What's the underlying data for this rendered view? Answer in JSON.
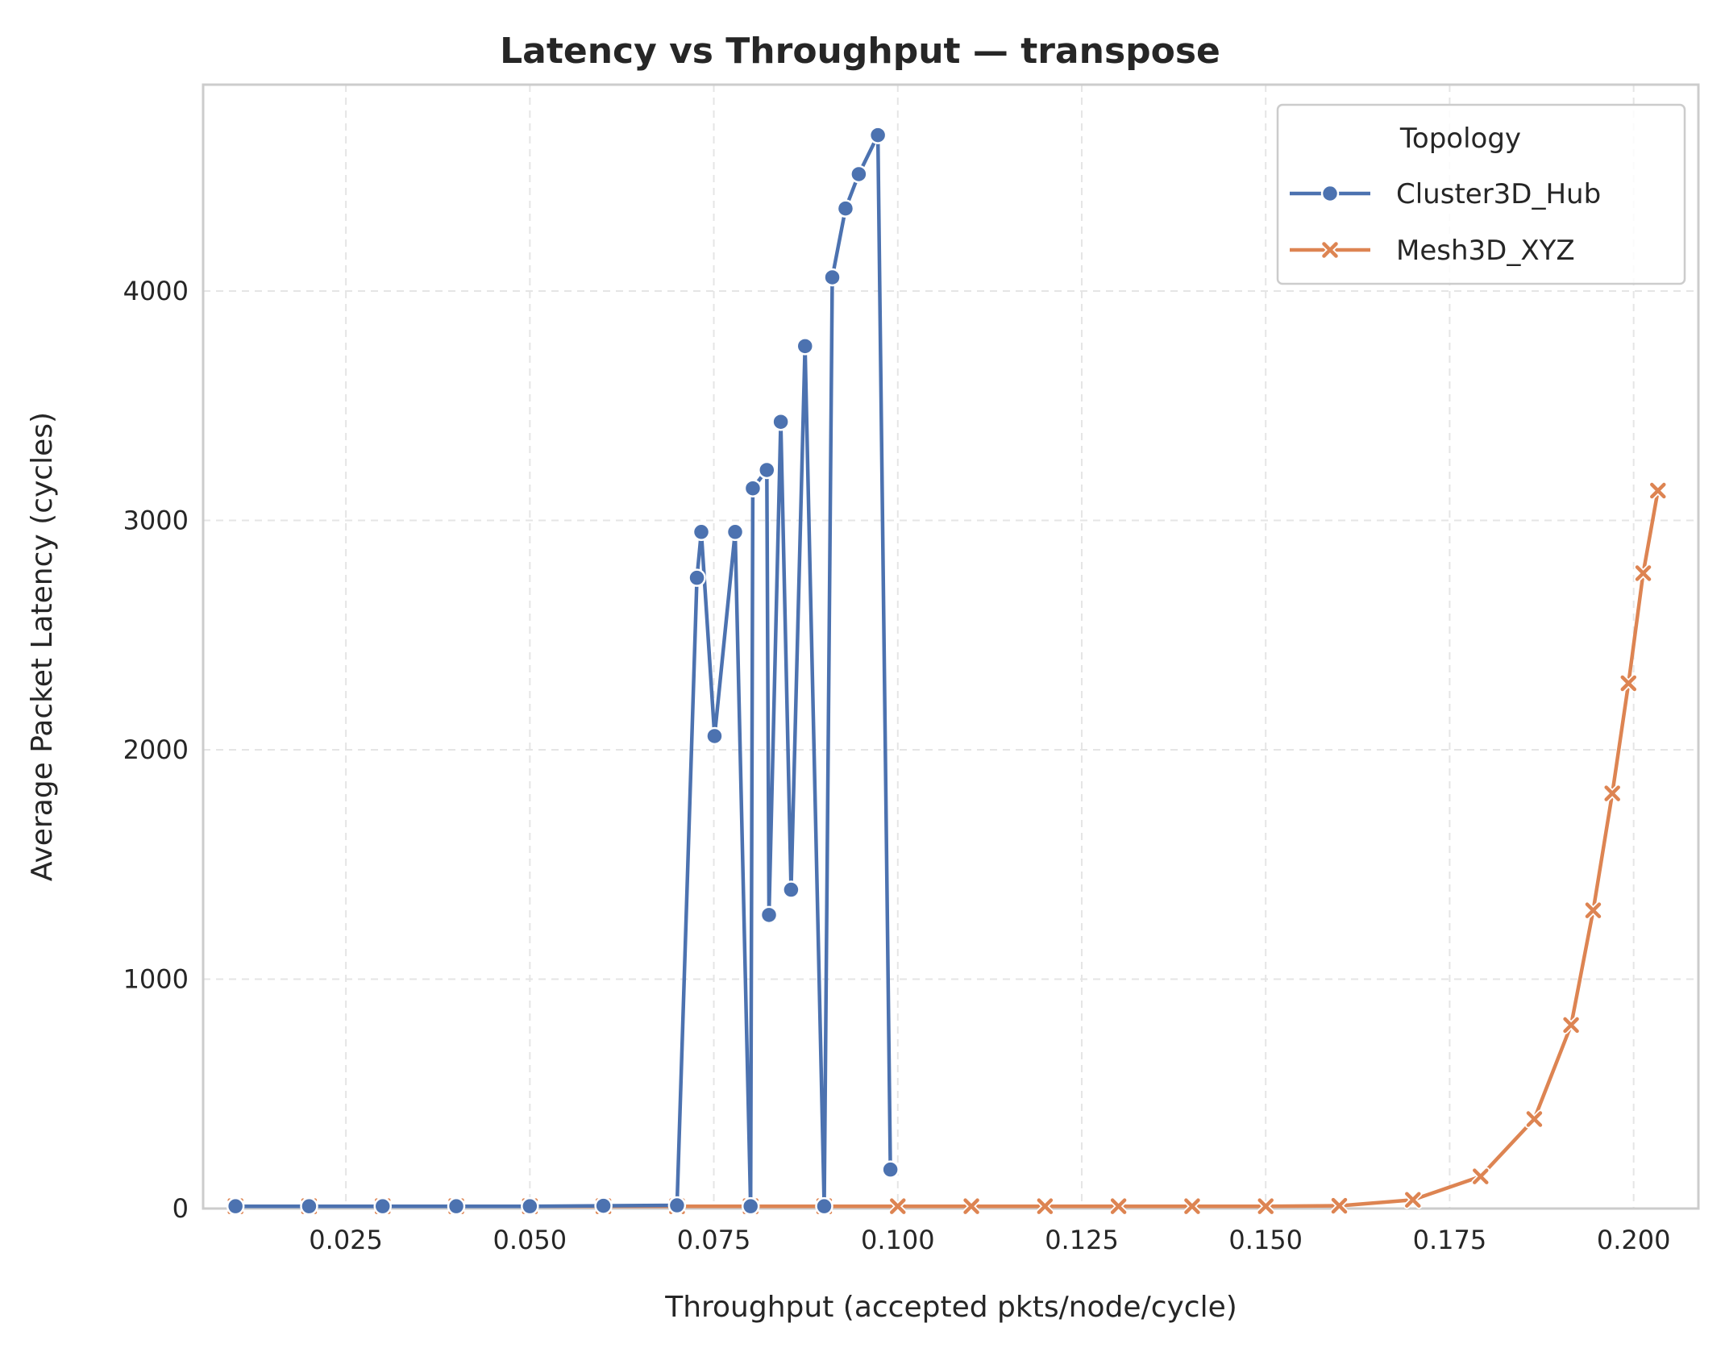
{
  "chart_data": {
    "type": "line",
    "title": "Latency vs Throughput — transpose",
    "xlabel": "Throughput (accepted pkts/node/cycle)",
    "ylabel": "Average Packet Latency (cycles)",
    "xlim": [
      0.0056,
      0.2088
    ],
    "ylim": [
      0,
      4900
    ],
    "xticks": [
      0.025,
      0.05,
      0.075,
      0.1,
      0.125,
      0.15,
      0.175,
      0.2
    ],
    "xtick_labels": [
      "0.025",
      "0.050",
      "0.075",
      "0.100",
      "0.125",
      "0.150",
      "0.175",
      "0.200"
    ],
    "yticks": [
      0,
      1000,
      2000,
      3000,
      4000
    ],
    "ytick_labels": [
      "0",
      "1000",
      "2000",
      "3000",
      "4000"
    ],
    "grid": true,
    "legend": {
      "title": "Topology",
      "position": "top-right"
    },
    "series": [
      {
        "name": "Cluster3D_Hub",
        "color": "#4c72b0",
        "marker": "circle",
        "points": [
          [
            0.01,
            10
          ],
          [
            0.02,
            10
          ],
          [
            0.03,
            10
          ],
          [
            0.04,
            10
          ],
          [
            0.05,
            10
          ],
          [
            0.06,
            12
          ],
          [
            0.07,
            14
          ],
          [
            0.0727,
            2750
          ],
          [
            0.0733,
            2950
          ],
          [
            0.0751,
            2060
          ],
          [
            0.0779,
            2950
          ],
          [
            0.08,
            10
          ],
          [
            0.0803,
            3140
          ],
          [
            0.0822,
            3220
          ],
          [
            0.0825,
            1280
          ],
          [
            0.0841,
            3430
          ],
          [
            0.0855,
            1390
          ],
          [
            0.0874,
            3760
          ],
          [
            0.09,
            10
          ],
          [
            0.0911,
            4060
          ],
          [
            0.0929,
            4360
          ],
          [
            0.0947,
            4510
          ],
          [
            0.0973,
            4680
          ],
          [
            0.099,
            170
          ]
        ]
      },
      {
        "name": "Mesh3D_XYZ",
        "color": "#dd8452",
        "marker": "x",
        "points": [
          [
            0.01,
            10
          ],
          [
            0.02,
            10
          ],
          [
            0.03,
            10
          ],
          [
            0.04,
            10
          ],
          [
            0.05,
            10
          ],
          [
            0.06,
            10
          ],
          [
            0.07,
            10
          ],
          [
            0.08,
            10
          ],
          [
            0.09,
            10
          ],
          [
            0.1,
            10
          ],
          [
            0.11,
            10
          ],
          [
            0.12,
            10
          ],
          [
            0.13,
            10
          ],
          [
            0.14,
            10
          ],
          [
            0.15,
            10
          ],
          [
            0.16,
            12
          ],
          [
            0.17,
            38
          ],
          [
            0.1792,
            140
          ],
          [
            0.1865,
            390
          ],
          [
            0.1915,
            800
          ],
          [
            0.1945,
            1300
          ],
          [
            0.1971,
            1810
          ],
          [
            0.1993,
            2290
          ],
          [
            0.2013,
            2770
          ],
          [
            0.2033,
            3130
          ]
        ]
      }
    ]
  }
}
